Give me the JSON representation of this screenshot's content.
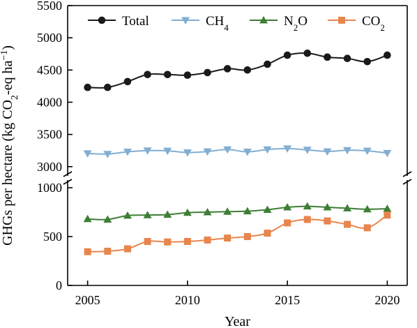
{
  "chart_data": {
    "type": "line",
    "xlabel": "Year",
    "ylabel": "GHGs per hectare (kg CO2-eq ha−1)",
    "ylabel_parts": {
      "main": "GHGs per hectare (kg CO",
      "sub": "2",
      "mid": "-eq ha",
      "sup": "−1",
      "end": ")"
    },
    "x": [
      2005,
      2006,
      2007,
      2008,
      2009,
      2010,
      2011,
      2012,
      2013,
      2014,
      2015,
      2016,
      2017,
      2018,
      2019,
      2020
    ],
    "x_ticks": [
      2005,
      2010,
      2015,
      2020
    ],
    "x_lim": [
      2004,
      2021
    ],
    "y_broken_axis": true,
    "y_upper_lim": [
      2900,
      5500
    ],
    "y_lower_lim": [
      0,
      1050
    ],
    "y_upper_ticks": [
      3000,
      3500,
      4000,
      4500,
      5000,
      5500
    ],
    "y_lower_ticks": [
      0,
      500,
      1000
    ],
    "grid": false,
    "legend_position": "top",
    "series": [
      {
        "name": "Total",
        "name_base": "Total",
        "name_sub": "",
        "color": "#1a1a1a",
        "marker": "circle",
        "values": [
          4230,
          4230,
          4320,
          4430,
          4430,
          4420,
          4460,
          4520,
          4500,
          4590,
          4730,
          4760,
          4700,
          4680,
          4630,
          4730
        ]
      },
      {
        "name": "CH4",
        "name_base": "CH",
        "name_sub": "4",
        "color": "#82aed2",
        "marker": "triangle-down",
        "values": [
          3205,
          3195,
          3230,
          3250,
          3245,
          3220,
          3235,
          3265,
          3230,
          3265,
          3280,
          3260,
          3235,
          3255,
          3245,
          3210
        ]
      },
      {
        "name": "N2O",
        "name_base": "N",
        "name_sub": "2",
        "name_end": "O",
        "color": "#3e7e36",
        "marker": "triangle-up",
        "values": [
          680,
          675,
          715,
          720,
          725,
          745,
          750,
          755,
          760,
          775,
          800,
          810,
          800,
          790,
          780,
          785
        ]
      },
      {
        "name": "CO2",
        "name_base": "CO",
        "name_sub": "2",
        "color": "#e8854d",
        "marker": "square",
        "values": [
          345,
          350,
          375,
          450,
          445,
          450,
          465,
          485,
          500,
          535,
          640,
          675,
          660,
          625,
          590,
          720
        ]
      }
    ]
  }
}
